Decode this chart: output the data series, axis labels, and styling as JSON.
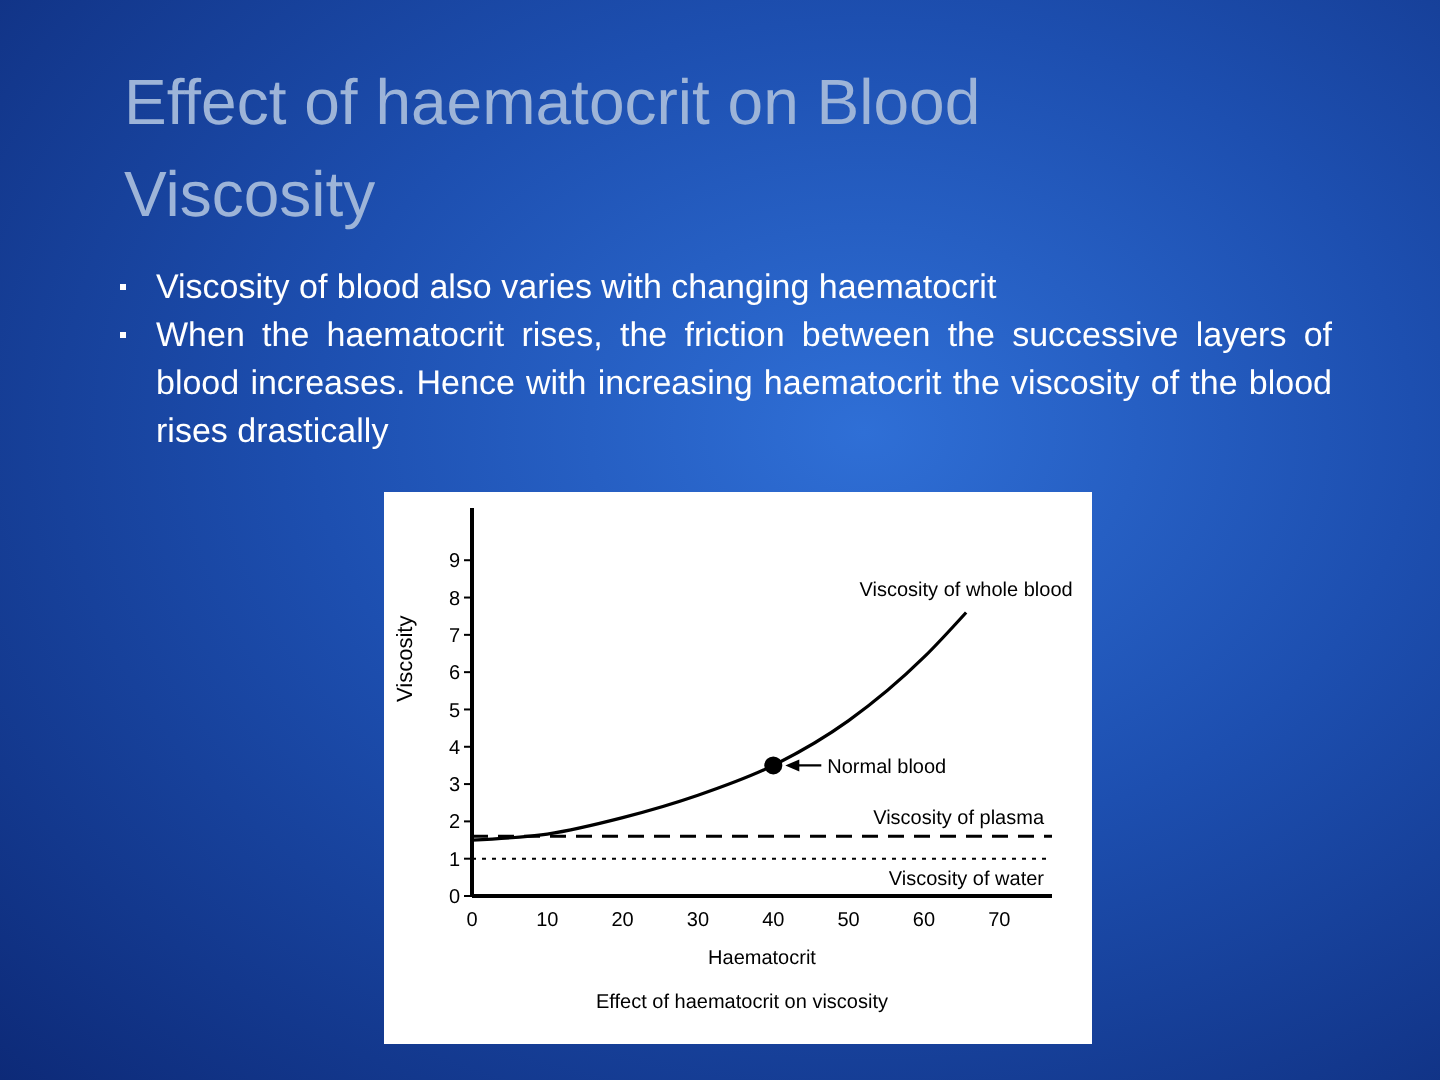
{
  "chart_data": {
    "type": "line",
    "title": "Effect of haematocrit on Blood Viscosity",
    "annotations": [
      "Viscosity of blood also varies with changing haematocrit",
      "When the haematocrit rises, the friction between the successive layers of blood increases. Hence with increasing haematocrit the viscosity of the blood rises drastically",
      {
        "text": "Normal blood",
        "x": 40,
        "y": 3.5
      },
      "Effect of haematocrit on viscosity"
    ],
    "xlabel": "Haematocrit",
    "ylabel": "Viscosity",
    "xlim": [
      0,
      77
    ],
    "ylim": [
      0,
      10.4
    ],
    "xticks": [
      0,
      10,
      20,
      30,
      40,
      50,
      60,
      70
    ],
    "yticks": [
      0,
      1,
      2,
      3,
      4,
      5,
      6,
      7,
      8,
      9
    ],
    "grid": false,
    "legend": false,
    "line_style": "solid",
    "series": [
      {
        "name": "Viscosity of whole blood",
        "color": "#000000",
        "marker": "none",
        "x": [
          0,
          10,
          20,
          30,
          40,
          50,
          60,
          65.6
        ],
        "values": [
          1.5,
          1.66,
          2.1,
          2.7,
          3.5,
          4.7,
          6.4,
          7.6
        ]
      },
      {
        "type": "scatter",
        "color": "#000000",
        "marker": "circle",
        "x": [
          40
        ],
        "values": [
          3.5
        ]
      }
    ],
    "ref_lines": [
      {
        "axis": "y",
        "value": 1.6,
        "label": "Viscosity of plasma",
        "color": "#000000",
        "line_style": "dashed"
      },
      {
        "axis": "y",
        "value": 1,
        "label": "Viscosity of water",
        "color": "#000000",
        "line_style": "dotted"
      }
    ]
  }
}
